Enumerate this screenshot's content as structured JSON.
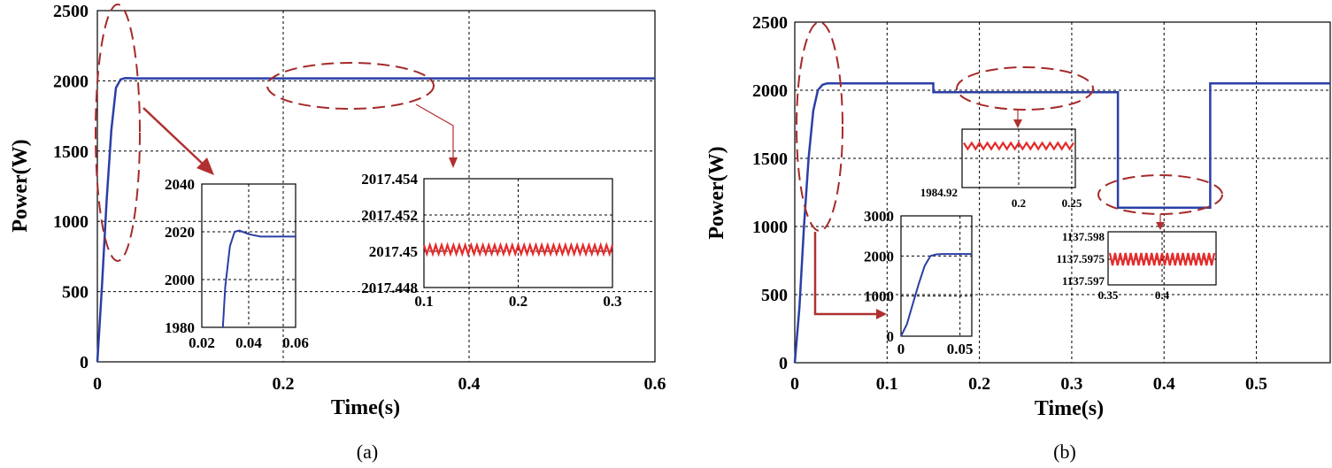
{
  "chart_data": [
    {
      "id": "a",
      "type": "line",
      "caption": "(a)",
      "xlabel": "Time(s)",
      "ylabel": "Power(W)",
      "xlim": [
        0,
        0.6
      ],
      "ylim": [
        0,
        2500
      ],
      "x_ticks": [
        "0",
        "0.2",
        "0.4",
        "0.6"
      ],
      "y_ticks": [
        "0",
        "500",
        "1000",
        "1500",
        "2000",
        "2500"
      ],
      "grid": true,
      "series": [
        {
          "x": [
            0,
            0.005,
            0.01,
            0.015,
            0.02,
            0.025,
            0.03,
            0.035,
            0.04,
            0.6
          ],
          "y": [
            0,
            550,
            1150,
            1650,
            1950,
            2010,
            2020,
            2019,
            2017.45,
            2017.45
          ]
        }
      ],
      "insets": [
        {
          "xlim": [
            0.02,
            0.06
          ],
          "ylim": [
            1980,
            2040
          ],
          "x_ticks": [
            "0.02",
            "0.04",
            "0.06"
          ],
          "y_ticks": [
            "1980",
            "2000",
            "2020",
            "2040"
          ],
          "x": [
            0.029,
            0.03,
            0.032,
            0.034,
            0.036,
            0.04,
            0.045,
            0.06
          ],
          "y": [
            1980,
            1997,
            2014,
            2020,
            2020.5,
            2019,
            2018,
            2018
          ]
        },
        {
          "xlim": [
            0.1,
            0.3
          ],
          "ylim": [
            2017.448,
            2017.454
          ],
          "x_ticks": [
            "0.1",
            "0.2",
            "0.3"
          ],
          "y_ticks": [
            "2017.448",
            "2017.45",
            "2017.452",
            "2017.454"
          ],
          "ripple_center": 2017.4501,
          "ripple_amplitude": 0.0002
        }
      ]
    },
    {
      "id": "b",
      "type": "line",
      "caption": "(b)",
      "xlabel": "Time(s)",
      "ylabel": "Power(W)",
      "xlim": [
        0,
        0.58
      ],
      "ylim": [
        0,
        2500
      ],
      "x_ticks": [
        "0",
        "0.1",
        "0.2",
        "0.3",
        "0.4",
        "0.5"
      ],
      "y_ticks": [
        "0",
        "500",
        "1000",
        "1500",
        "2000",
        "2500"
      ],
      "grid": true,
      "series": [
        {
          "x": [
            0,
            0.005,
            0.01,
            0.015,
            0.02,
            0.025,
            0.03,
            0.035,
            0.15,
            0.15,
            0.35,
            0.35,
            0.45,
            0.45,
            0.58
          ],
          "y": [
            0,
            400,
            1000,
            1500,
            1850,
            2000,
            2040,
            2050,
            2050,
            1985,
            1985,
            1137.6,
            1137.6,
            2050,
            2050
          ]
        }
      ],
      "insets": [
        {
          "xlim": [
            0,
            0.06
          ],
          "ylim": [
            0,
            3000
          ],
          "x_ticks": [
            "0",
            "0.05"
          ],
          "y_ticks": [
            "0",
            "1000",
            "2000",
            "3000"
          ],
          "x": [
            0,
            0.005,
            0.01,
            0.015,
            0.02,
            0.025,
            0.03,
            0.035,
            0.06
          ],
          "y": [
            0,
            300,
            800,
            1300,
            1750,
            2000,
            2040,
            2050,
            2050
          ]
        },
        {
          "xlim": [
            0.15,
            0.25
          ],
          "x_ticks": [
            "0.2",
            "0.25"
          ],
          "y_ticks": [
            "1984.92"
          ],
          "ripple_center": 1984.92
        },
        {
          "xlim": [
            0.35,
            0.45
          ],
          "x_ticks": [
            "0.35",
            "0.4"
          ],
          "y_ticks": [
            "1137.597",
            "1137.5975",
            "1137.598"
          ],
          "ripple_center": 1137.5975
        }
      ]
    }
  ]
}
